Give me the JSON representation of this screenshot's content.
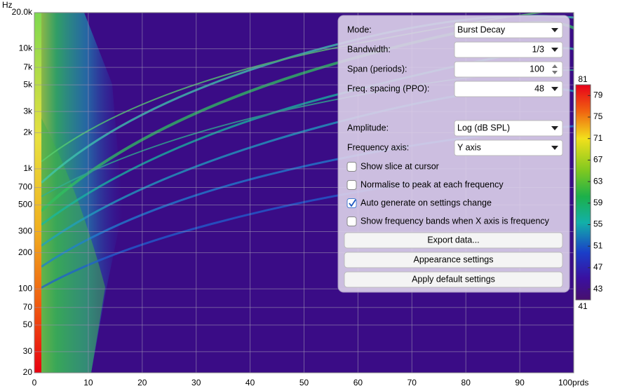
{
  "plot": {
    "y_axis_label": "Hz",
    "ylim": [
      20,
      20000
    ],
    "yticks": [
      {
        "value": 20000,
        "label": "20.0k"
      },
      {
        "value": 10000,
        "label": "10k"
      },
      {
        "value": 7000,
        "label": "7k"
      },
      {
        "value": 5000,
        "label": "5k"
      },
      {
        "value": 3000,
        "label": "3k"
      },
      {
        "value": 2000,
        "label": "2k"
      },
      {
        "value": 1000,
        "label": "1k"
      },
      700,
      500,
      300,
      200,
      100,
      70,
      50,
      30,
      20
    ],
    "xlim": [
      0,
      100
    ],
    "xticks": [
      0,
      10,
      20,
      30,
      40,
      50,
      60,
      70,
      80,
      90,
      {
        "value": 100,
        "label": "100prds"
      }
    ]
  },
  "colorbar": {
    "lim": [
      41,
      81
    ],
    "ticks": [
      79,
      75,
      71,
      67,
      63,
      59,
      55,
      51,
      47,
      43
    ]
  },
  "settings": {
    "fields": [
      {
        "label": "Mode:",
        "value": "Burst Decay",
        "align": "left",
        "control": "dropdown"
      },
      {
        "label": "Bandwidth:",
        "value": "1/3",
        "align": "right",
        "control": "dropdown"
      },
      {
        "label": "Span (periods):",
        "value": 100,
        "align": "right",
        "control": "spinner"
      },
      {
        "label": "Freq. spacing (PPO):",
        "value": 48,
        "align": "right",
        "control": "dropdown"
      },
      {
        "label": "Amplitude:",
        "value": "Log (dB SPL)",
        "align": "left",
        "control": "dropdown"
      },
      {
        "label": "Frequency axis:",
        "value": "Y axis",
        "align": "left",
        "control": "dropdown"
      }
    ],
    "checkboxes": [
      {
        "label": "Show slice at cursor",
        "checked": false
      },
      {
        "label": "Normalise to peak at each frequency",
        "checked": false
      },
      {
        "label": "Auto generate on settings change",
        "checked": true
      },
      {
        "label": "Show frequency bands when X axis is frequency",
        "checked": false
      }
    ],
    "buttons": [
      "Export data...",
      "Appearance settings",
      "Apply default settings"
    ]
  }
}
